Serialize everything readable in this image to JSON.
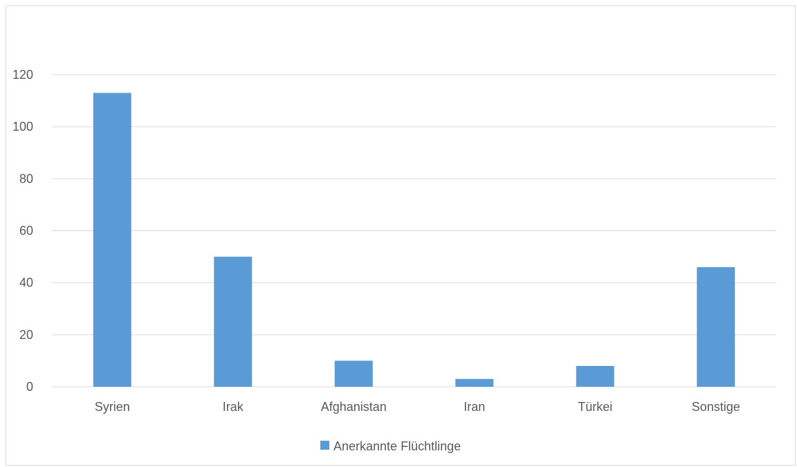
{
  "chart_data": {
    "type": "bar",
    "categories": [
      "Syrien",
      "Irak",
      "Afghanistan",
      "Iran",
      "Türkei",
      "Sonstige"
    ],
    "series": [
      {
        "name": "Anerkannte Flüchtlinge",
        "values": [
          113,
          50,
          10,
          3,
          8,
          46
        ],
        "color": "#5b9bd5"
      }
    ],
    "ylim": [
      0,
      120
    ],
    "yticks": [
      0,
      20,
      40,
      60,
      80,
      100,
      120
    ],
    "grid": true,
    "legend": "bottom",
    "gridColor": "#d9d9d9",
    "textColor": "#595959"
  }
}
